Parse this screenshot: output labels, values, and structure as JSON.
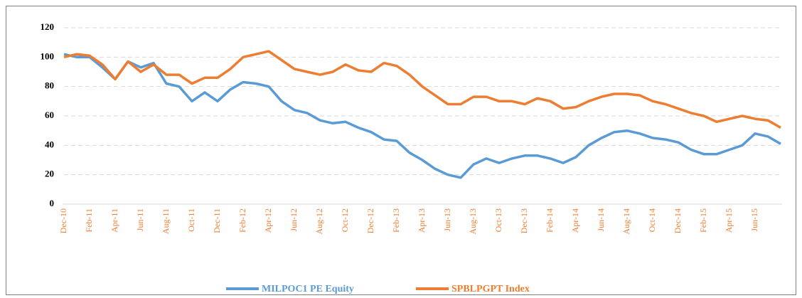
{
  "chart_data": {
    "type": "line",
    "categories": [
      "Dec-10",
      null,
      "Feb-11",
      null,
      "Apr-11",
      null,
      "Jun-11",
      null,
      "Aug-11",
      null,
      "Oct-11",
      null,
      "Dec-11",
      null,
      "Feb-12",
      null,
      "Apr-12",
      null,
      "Jun-12",
      null,
      "Aug-12",
      null,
      "Oct-12",
      null,
      "Dec-12",
      null,
      "Feb-13",
      null,
      "Apr-13",
      null,
      "Jun-13",
      null,
      "Aug-13",
      null,
      "Oct-13",
      null,
      "Dec-13",
      null,
      "Feb-14",
      null,
      "Apr-14",
      null,
      "Jun-14",
      null,
      "Aug-14",
      null,
      "Oct-14",
      null,
      "Dec-14",
      null,
      "Feb-15",
      null,
      "Apr-15",
      null,
      "Jun-15",
      null,
      null
    ],
    "series": [
      {
        "name": "MILPOC1 PE Equity",
        "color": "#5b9bd5",
        "values": [
          102,
          100,
          100,
          93,
          85,
          97,
          93,
          96,
          82,
          80,
          70,
          76,
          70,
          78,
          83,
          82,
          80,
          70,
          64,
          62,
          57,
          55,
          56,
          52,
          49,
          44,
          43,
          35,
          30,
          24,
          20,
          18,
          27,
          31,
          28,
          31,
          33,
          33,
          31,
          28,
          32,
          40,
          45,
          49,
          50,
          48,
          45,
          44,
          42,
          37,
          34,
          34,
          37,
          40,
          48,
          46,
          41
        ]
      },
      {
        "name": "SPBLPGPT Index",
        "color": "#ed7d31",
        "values": [
          100,
          102,
          101,
          95,
          85,
          97,
          90,
          95,
          88,
          88,
          82,
          86,
          86,
          92,
          100,
          102,
          104,
          98,
          92,
          90,
          88,
          90,
          95,
          91,
          90,
          96,
          94,
          88,
          80,
          74,
          68,
          68,
          73,
          73,
          70,
          70,
          68,
          72,
          70,
          65,
          66,
          70,
          73,
          75,
          75,
          74,
          70,
          68,
          65,
          62,
          60,
          56,
          58,
          60,
          58,
          57,
          52
        ]
      }
    ],
    "ylim": [
      0,
      120
    ],
    "yticks": [
      0,
      20,
      40,
      60,
      80,
      100,
      120
    ],
    "grid": true
  }
}
